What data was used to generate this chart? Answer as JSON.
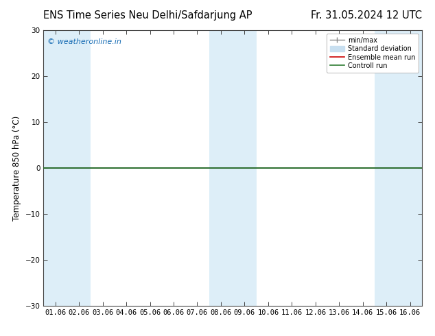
{
  "title_left": "ENS Time Series Neu Delhi/Safdarjung AP",
  "title_right": "Fr. 31.05.2024 12 UTC",
  "ylabel": "Temperature 850 hPa (°C)",
  "ylim": [
    -30,
    30
  ],
  "yticks": [
    -30,
    -20,
    -10,
    0,
    10,
    20,
    30
  ],
  "x_labels": [
    "01.06",
    "02.06",
    "03.06",
    "04.06",
    "05.06",
    "06.06",
    "07.06",
    "08.06",
    "09.06",
    "10.06",
    "11.06",
    "12.06",
    "13.06",
    "14.06",
    "15.06",
    "16.06"
  ],
  "shaded_cols": [
    0,
    1,
    7,
    8,
    14,
    15
  ],
  "shade_color": "#ddeef8",
  "watermark": "© weatheronline.in",
  "watermark_color": "#1a6eb5",
  "background_color": "#ffffff",
  "plot_bg_color": "#ffffff",
  "zero_line_color": "#000000",
  "control_run_color": "#2e7d32",
  "ensemble_mean_color": "#cc0000",
  "minmax_color": "#888888",
  "stddev_color": "#c8dff0",
  "legend_items": [
    "min/max",
    "Standard deviation",
    "Ensemble mean run",
    "Controll run"
  ],
  "legend_colors": [
    "#888888",
    "#c8dff0",
    "#cc0000",
    "#2e7d32"
  ],
  "title_fontsize": 10.5,
  "label_fontsize": 8.5,
  "tick_fontsize": 7.5
}
